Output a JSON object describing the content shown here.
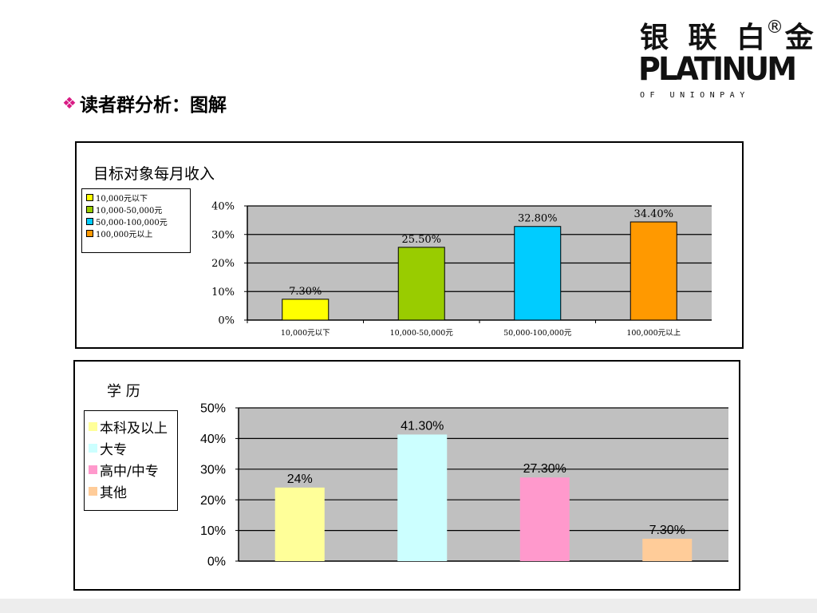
{
  "logo": {
    "cn": "银 联 白 金",
    "reg": "®",
    "en": "PLATINUM",
    "sub": "OF UNIONPAY"
  },
  "heading": {
    "bullet": "❖",
    "text": "读者群分析：图解"
  },
  "chart_data": [
    {
      "type": "bar",
      "title": "目标对象每月收入",
      "categories": [
        "10,000元以下",
        "10,000-50,000元",
        "50,000-100,000元",
        "100,000元以上"
      ],
      "values": [
        7.3,
        25.5,
        32.8,
        34.4
      ],
      "data_labels": [
        "7.30%",
        "25.50%",
        "32.80%",
        "34.40%"
      ],
      "colors": [
        "#ffff00",
        "#99cc00",
        "#00ccff",
        "#ff9900"
      ],
      "ylim": [
        0,
        40
      ],
      "yticks": [
        "0%",
        "10%",
        "20%",
        "30%",
        "40%"
      ],
      "grid": true,
      "plot_background": "#c0c0c0",
      "legend": {
        "placement": "left",
        "entries": [
          "10,000元以下",
          "10,000-50,000元",
          "50,000-100,000元",
          "100,000元以上"
        ]
      }
    },
    {
      "type": "bar",
      "title": "学  历",
      "categories": [
        "本科及以上",
        "大专",
        "高中/中专",
        "其他"
      ],
      "values": [
        24,
        41.3,
        27.3,
        7.3
      ],
      "data_labels": [
        "24%",
        "41.30%",
        "27.30%",
        "7.30%"
      ],
      "colors": [
        "#ffff99",
        "#ccffff",
        "#ff99cc",
        "#ffcc99"
      ],
      "ylim": [
        0,
        50
      ],
      "yticks": [
        "0%",
        "10%",
        "20%",
        "30%",
        "40%",
        "50%"
      ],
      "grid": true,
      "plot_background": "#c0c0c0",
      "legend": {
        "placement": "left",
        "entries": [
          "本科及以上",
          "大专",
          "高中/中专",
          "其他"
        ]
      }
    }
  ]
}
